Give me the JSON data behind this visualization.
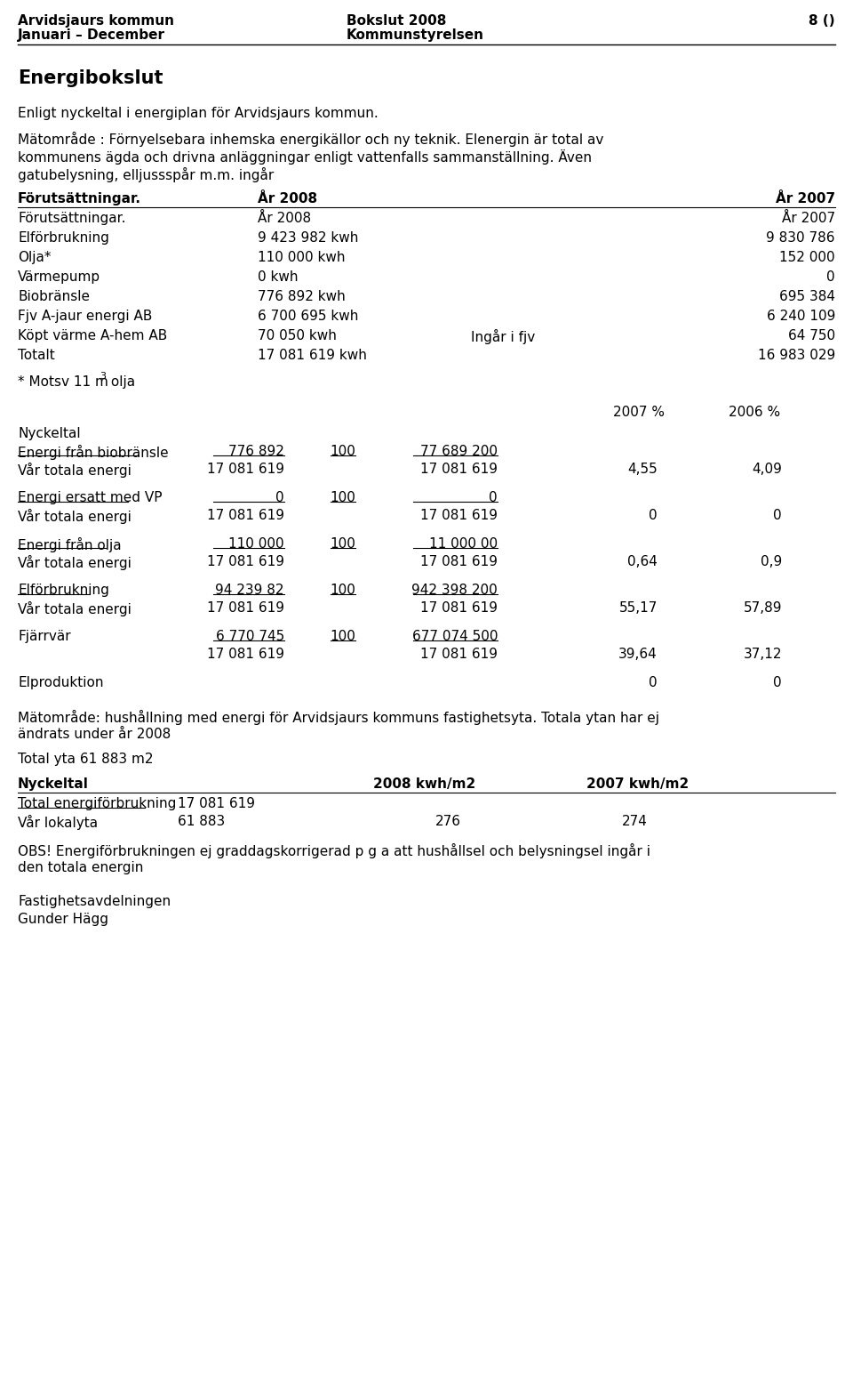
{
  "header_left_line1": "Arvidsjaurs kommun",
  "header_left_line2": "Januari – December",
  "header_center_line1": "Bokslut 2008",
  "header_center_line2": "Kommunstyrelsen",
  "header_right": "8 ()",
  "title": "Energibokslut",
  "para1": "Enligt nyckeltal i energiplan för Arvidsjaurs kommun.",
  "para2_lines": [
    "Mätområde : Förnyelsebara inhemska energikällor och ny teknik. Elenergin är total av",
    "kommunens ägda och drivna anläggningar enligt vattenfalls sammanställning. Även",
    "gatubelysning, elljussspår m.m. ingår"
  ],
  "table1_header": [
    "Förutsättningar.",
    "År 2008",
    "År 2007"
  ],
  "table1_rows": [
    [
      "Förutsättningar.",
      "År 2008",
      "",
      "År 2007"
    ],
    [
      "Elförbrukning",
      "9 423 982 kwh",
      "",
      "9 830 786"
    ],
    [
      "Olja*",
      "110 000 kwh",
      "",
      "152 000"
    ],
    [
      "Värmepump",
      "0 kwh",
      "",
      "0"
    ],
    [
      "Biobränsle",
      "776 892 kwh",
      "",
      "695 384"
    ],
    [
      "Fjv A-jaur energi AB",
      "6 700 695 kwh",
      "",
      "6 240 109"
    ],
    [
      "Köpt värme A-hem AB",
      "70 050 kwh",
      "Ingår i fjv",
      "64 750"
    ],
    [
      "Totalt",
      "17 081 619 kwh",
      "",
      "16 983 029"
    ]
  ],
  "footnote_pre": "* Motsv 11 m",
  "footnote_sup": "3",
  "footnote_post": " olja",
  "nyckeltal_pct_header": [
    "2007 %",
    "2006 %"
  ],
  "nyckeltal_label": "Nyckeltal",
  "nyckeltal_rows": [
    {
      "label": "Energi från biobränsle",
      "label_ul": true,
      "c1": "776 892",
      "c1_ul": true,
      "c2": "100",
      "c2_ul": true,
      "c3": "77 689 200",
      "c3_ul": true,
      "c4": "",
      "c5": ""
    },
    {
      "label": "Vår totala energi",
      "label_ul": false,
      "c1": "17 081 619",
      "c1_ul": false,
      "c2": "",
      "c2_ul": false,
      "c3": "17 081 619",
      "c3_ul": false,
      "c4": "4,55",
      "c5": "4,09"
    },
    {
      "label": "Energi ersatt med VP",
      "label_ul": true,
      "c1": "0",
      "c1_ul": true,
      "c2": "100",
      "c2_ul": true,
      "c3": "0",
      "c3_ul": true,
      "c4": "",
      "c5": ""
    },
    {
      "label": "Vår totala energi",
      "label_ul": false,
      "c1": "17 081 619",
      "c1_ul": false,
      "c2": "",
      "c2_ul": false,
      "c3": "17 081 619",
      "c3_ul": false,
      "c4": "0",
      "c5": "0"
    },
    {
      "label": "Energi från olja",
      "label_ul": true,
      "c1": "110 000",
      "c1_ul": true,
      "c2": "100",
      "c2_ul": true,
      "c3": "11 000 00",
      "c3_ul": true,
      "c4": "",
      "c5": ""
    },
    {
      "label": "Vår totala energi",
      "label_ul": false,
      "c1": "17 081 619",
      "c1_ul": false,
      "c2": "",
      "c2_ul": false,
      "c3": "17 081 619",
      "c3_ul": false,
      "c4": "0,64",
      "c5": "0,9"
    },
    {
      "label": "Elförbrukning",
      "label_ul": true,
      "c1": "94 239 82",
      "c1_ul": true,
      "c2": "100",
      "c2_ul": true,
      "c3": "942 398 200",
      "c3_ul": true,
      "c4": "",
      "c5": ""
    },
    {
      "label": "Vår totala energi",
      "label_ul": false,
      "c1": "17 081 619",
      "c1_ul": false,
      "c2": "",
      "c2_ul": false,
      "c3": "17 081 619",
      "c3_ul": false,
      "c4": "55,17",
      "c5": "57,89"
    },
    {
      "label": "Fjärrvär",
      "label_ul": false,
      "c1": "6 770 745",
      "c1_ul": true,
      "c2": "100",
      "c2_ul": true,
      "c3": "677 074 500",
      "c3_ul": true,
      "c4": "",
      "c5": ""
    },
    {
      "label": "",
      "label_ul": false,
      "c1": "17 081 619",
      "c1_ul": false,
      "c2": "",
      "c2_ul": false,
      "c3": "17 081 619",
      "c3_ul": false,
      "c4": "39,64",
      "c5": "37,12"
    },
    {
      "label": "Elproduktion",
      "label_ul": false,
      "c1": "",
      "c1_ul": false,
      "c2": "",
      "c2_ul": false,
      "c3": "",
      "c3_ul": false,
      "c4": "0",
      "c5": "0"
    }
  ],
  "nyc_groups": [
    [
      0,
      1
    ],
    [
      2,
      3
    ],
    [
      4,
      5
    ],
    [
      6,
      7
    ],
    [
      8,
      9
    ],
    [
      10
    ]
  ],
  "matomrade_lines": [
    "Mätområde: hushållning med energi för Arvidsjaurs kommuns fastighetsyta. Totala ytan har ej",
    "ändrats under år 2008"
  ],
  "total_yta": "Total yta 61 883 m2",
  "nyc2_header": [
    "Nyckeltal",
    "2008 kwh/m2",
    "2007 kwh/m2"
  ],
  "nyc2_rows": [
    {
      "label": "Total energiförbrukning",
      "label_ul": true,
      "c1": "17 081 619",
      "c2": "",
      "c3": ""
    },
    {
      "label": "Vår lokalyta",
      "label_ul": false,
      "c1": "61 883",
      "c2": "276",
      "c3": "274"
    }
  ],
  "obs_lines": [
    "OBS! Energiförbrukningen ej graddagskorrigerad p g a att hushållsel och belysningsel ingår i",
    "den totala energin"
  ],
  "footer1": "Fastighetsavdelningen",
  "footer2": "Gunder Hägg",
  "bg_color": "#ffffff",
  "text_color": "#000000"
}
